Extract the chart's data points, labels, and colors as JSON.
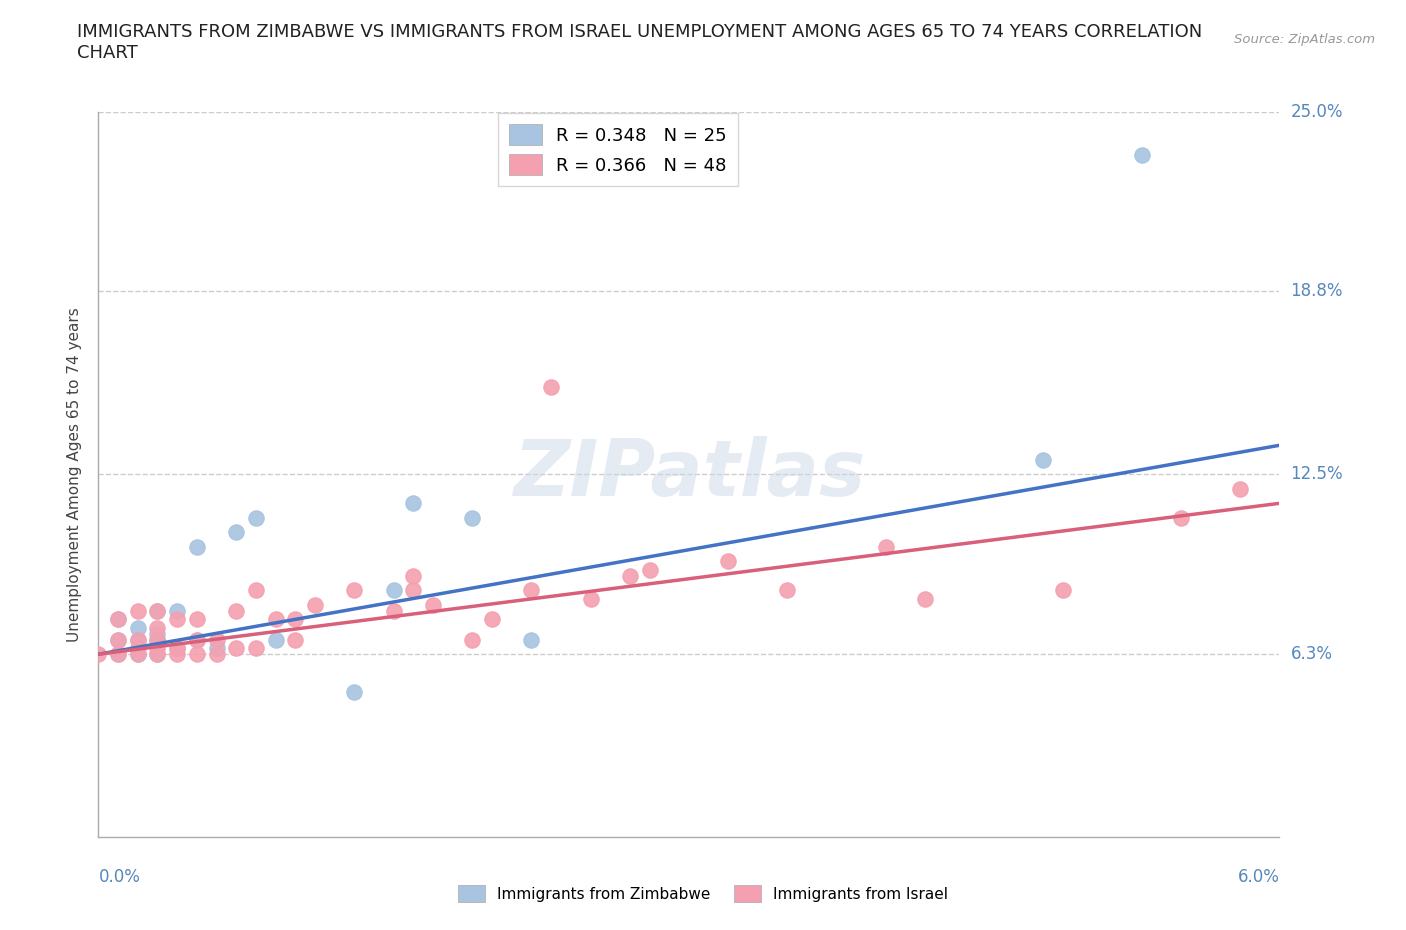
{
  "title": "IMMIGRANTS FROM ZIMBABWE VS IMMIGRANTS FROM ISRAEL UNEMPLOYMENT AMONG AGES 65 TO 74 YEARS CORRELATION\nCHART",
  "source_text": "Source: ZipAtlas.com",
  "ylabel": "Unemployment Among Ages 65 to 74 years",
  "xlim": [
    0.0,
    0.06
  ],
  "ylim": [
    0.0,
    0.25
  ],
  "yticks": [
    0.063,
    0.125,
    0.188,
    0.25
  ],
  "ytick_labels": [
    "6.3%",
    "12.5%",
    "18.8%",
    "25.0%"
  ],
  "xtick_labels": [
    "0.0%",
    "6.0%"
  ],
  "zimbabwe_color": "#a8c4e0",
  "israel_color": "#f4a0b0",
  "zimbabwe_line_color": "#4472c4",
  "israel_line_color": "#d9607a",
  "legend_r_zimbabwe": "R = 0.348",
  "legend_n_zimbabwe": "N = 25",
  "legend_r_israel": "R = 0.366",
  "legend_n_israel": "N = 48",
  "watermark": "ZIPatlas",
  "zimbabwe_x": [
    0.001,
    0.001,
    0.001,
    0.002,
    0.002,
    0.002,
    0.003,
    0.003,
    0.003,
    0.003,
    0.004,
    0.004,
    0.005,
    0.005,
    0.006,
    0.007,
    0.008,
    0.009,
    0.013,
    0.015,
    0.016,
    0.019,
    0.022,
    0.048,
    0.053
  ],
  "zimbabwe_y": [
    0.063,
    0.068,
    0.075,
    0.063,
    0.068,
    0.072,
    0.063,
    0.068,
    0.07,
    0.078,
    0.065,
    0.078,
    0.068,
    0.1,
    0.065,
    0.105,
    0.11,
    0.068,
    0.05,
    0.085,
    0.115,
    0.11,
    0.068,
    0.13,
    0.235
  ],
  "israel_x": [
    0.0,
    0.001,
    0.001,
    0.001,
    0.002,
    0.002,
    0.002,
    0.002,
    0.003,
    0.003,
    0.003,
    0.003,
    0.003,
    0.004,
    0.004,
    0.004,
    0.005,
    0.005,
    0.005,
    0.006,
    0.006,
    0.007,
    0.007,
    0.008,
    0.008,
    0.009,
    0.01,
    0.01,
    0.011,
    0.013,
    0.015,
    0.016,
    0.016,
    0.017,
    0.019,
    0.02,
    0.022,
    0.023,
    0.025,
    0.027,
    0.028,
    0.032,
    0.035,
    0.04,
    0.042,
    0.049,
    0.055,
    0.058
  ],
  "israel_y": [
    0.063,
    0.063,
    0.068,
    0.075,
    0.063,
    0.065,
    0.068,
    0.078,
    0.063,
    0.065,
    0.068,
    0.072,
    0.078,
    0.063,
    0.065,
    0.075,
    0.063,
    0.068,
    0.075,
    0.063,
    0.068,
    0.065,
    0.078,
    0.065,
    0.085,
    0.075,
    0.068,
    0.075,
    0.08,
    0.085,
    0.078,
    0.085,
    0.09,
    0.08,
    0.068,
    0.075,
    0.085,
    0.155,
    0.082,
    0.09,
    0.092,
    0.095,
    0.085,
    0.1,
    0.082,
    0.085,
    0.11,
    0.12
  ],
  "background_color": "#ffffff",
  "grid_color": "#cccccc",
  "tick_label_color": "#5588bb",
  "title_fontsize": 13,
  "axis_label_fontsize": 11,
  "n_xticks": 11
}
